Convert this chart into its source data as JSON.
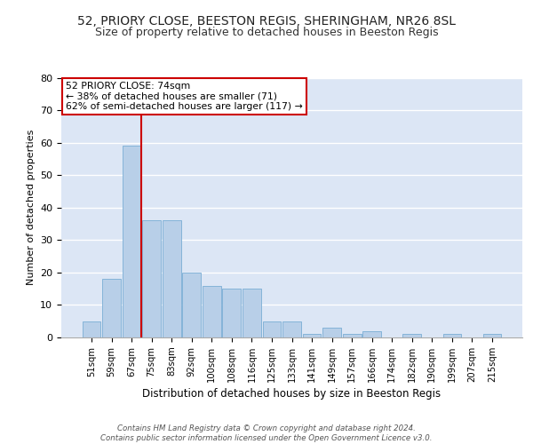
{
  "title1": "52, PRIORY CLOSE, BEESTON REGIS, SHERINGHAM, NR26 8SL",
  "title2": "Size of property relative to detached houses in Beeston Regis",
  "xlabel": "Distribution of detached houses by size in Beeston Regis",
  "ylabel": "Number of detached properties",
  "categories": [
    "51sqm",
    "59sqm",
    "67sqm",
    "75sqm",
    "83sqm",
    "92sqm",
    "100sqm",
    "108sqm",
    "116sqm",
    "125sqm",
    "133sqm",
    "141sqm",
    "149sqm",
    "157sqm",
    "166sqm",
    "174sqm",
    "182sqm",
    "190sqm",
    "199sqm",
    "207sqm",
    "215sqm"
  ],
  "values": [
    5,
    18,
    59,
    36,
    36,
    20,
    16,
    15,
    15,
    5,
    5,
    1,
    3,
    1,
    2,
    0,
    1,
    0,
    1,
    0,
    1
  ],
  "bar_color": "#b8cfe8",
  "bar_edge_color": "#7aadd4",
  "vline_color": "#cc0000",
  "annotation_box_text": "52 PRIORY CLOSE: 74sqm\n← 38% of detached houses are smaller (71)\n62% of semi-detached houses are larger (117) →",
  "annotation_box_color": "#cc0000",
  "ylim": [
    0,
    80
  ],
  "yticks": [
    0,
    10,
    20,
    30,
    40,
    50,
    60,
    70,
    80
  ],
  "bg_color": "#dce6f5",
  "footer_text": "Contains HM Land Registry data © Crown copyright and database right 2024.\nContains public sector information licensed under the Open Government Licence v3.0.",
  "title1_fontsize": 10,
  "title2_fontsize": 9
}
